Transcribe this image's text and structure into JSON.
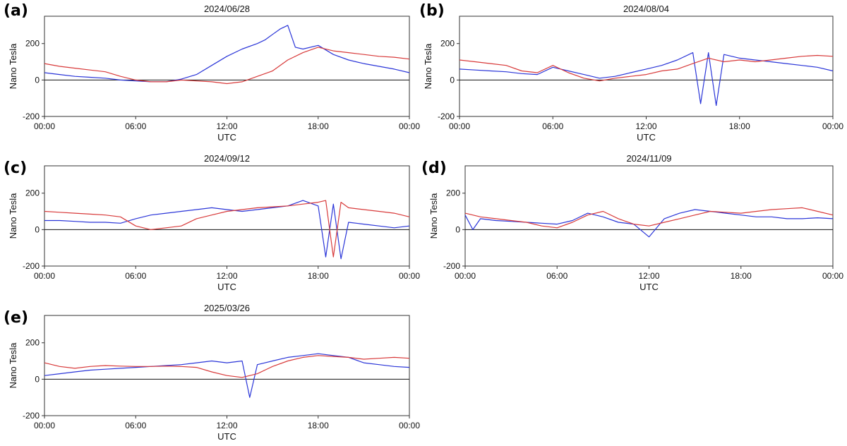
{
  "chart_data": [
    {
      "type": "line",
      "panel_label": "(a)",
      "title": "2024/06/28",
      "xlabel": "UTC",
      "ylabel": "Nano Tesla",
      "x_ticks": [
        "00:00",
        "06:00",
        "12:00",
        "18:00",
        "00:00"
      ],
      "y_ticks": [
        200,
        0,
        -200
      ],
      "xlim": [
        0,
        24
      ],
      "ylim": [
        -200,
        350
      ],
      "zero_line": true,
      "series": [
        {
          "color": "#2a35d8",
          "x": [
            0,
            1,
            2,
            3,
            4,
            5,
            6,
            7,
            8,
            9,
            10,
            11,
            12,
            13,
            14,
            14.5,
            15,
            15.5,
            16,
            16.5,
            17,
            18,
            19,
            20,
            21,
            22,
            23,
            24
          ],
          "y": [
            40,
            30,
            20,
            15,
            10,
            0,
            -5,
            -10,
            -10,
            5,
            30,
            80,
            130,
            170,
            200,
            220,
            250,
            280,
            300,
            180,
            170,
            190,
            140,
            110,
            90,
            75,
            60,
            40
          ]
        },
        {
          "color": "#d83a3a",
          "x": [
            0,
            1,
            2,
            3,
            4,
            5,
            6,
            7,
            8,
            9,
            10,
            11,
            12,
            13,
            14,
            15,
            16,
            17,
            18,
            19,
            20,
            21,
            22,
            23,
            24
          ],
          "y": [
            90,
            75,
            65,
            55,
            45,
            20,
            0,
            -10,
            -10,
            0,
            -5,
            -10,
            -20,
            -10,
            20,
            50,
            110,
            150,
            180,
            160,
            150,
            140,
            130,
            125,
            115
          ]
        }
      ]
    },
    {
      "type": "line",
      "panel_label": "(b)",
      "title": "2024/08/04",
      "xlabel": "UTC",
      "ylabel": "Nano Tesla",
      "x_ticks": [
        "00:00",
        "06:00",
        "12:00",
        "18:00",
        "00:00"
      ],
      "y_ticks": [
        200,
        0,
        -200
      ],
      "xlim": [
        0,
        24
      ],
      "ylim": [
        -200,
        350
      ],
      "zero_line": true,
      "series": [
        {
          "color": "#2a35d8",
          "x": [
            0,
            1,
            2,
            3,
            4,
            5,
            6,
            7,
            8,
            9,
            10,
            11,
            12,
            13,
            14,
            15,
            15.5,
            16,
            16.5,
            17,
            18,
            19,
            20,
            21,
            22,
            23,
            24
          ],
          "y": [
            60,
            55,
            50,
            45,
            35,
            30,
            70,
            50,
            30,
            10,
            20,
            40,
            60,
            80,
            110,
            150,
            -130,
            150,
            -140,
            140,
            120,
            110,
            100,
            90,
            80,
            70,
            50
          ]
        },
        {
          "color": "#d83a3a",
          "x": [
            0,
            1,
            2,
            3,
            4,
            5,
            6,
            7,
            8,
            9,
            10,
            11,
            12,
            13,
            14,
            15,
            16,
            17,
            18,
            19,
            20,
            21,
            22,
            23,
            24
          ],
          "y": [
            110,
            100,
            90,
            80,
            50,
            40,
            80,
            40,
            10,
            -5,
            10,
            20,
            30,
            50,
            60,
            90,
            120,
            100,
            110,
            100,
            110,
            120,
            130,
            135,
            130
          ]
        }
      ]
    },
    {
      "type": "line",
      "panel_label": "(c)",
      "title": "2024/09/12",
      "xlabel": "UTC",
      "ylabel": "Nano Tesla",
      "x_ticks": [
        "00:00",
        "06:00",
        "12:00",
        "18:00",
        "00:00"
      ],
      "y_ticks": [
        200,
        0,
        -200
      ],
      "xlim": [
        0,
        24
      ],
      "ylim": [
        -200,
        350
      ],
      "zero_line": true,
      "series": [
        {
          "color": "#2a35d8",
          "x": [
            0,
            1,
            2,
            3,
            4,
            5,
            6,
            7,
            8,
            9,
            10,
            11,
            12,
            13,
            14,
            15,
            16,
            17,
            18,
            18.5,
            19,
            19.5,
            20,
            21,
            22,
            23,
            24
          ],
          "y": [
            50,
            50,
            45,
            40,
            40,
            35,
            60,
            80,
            90,
            100,
            110,
            120,
            110,
            100,
            110,
            120,
            130,
            160,
            130,
            -150,
            140,
            -160,
            40,
            30,
            20,
            10,
            20
          ]
        },
        {
          "color": "#d83a3a",
          "x": [
            0,
            1,
            2,
            3,
            4,
            5,
            6,
            7,
            8,
            9,
            10,
            11,
            12,
            13,
            14,
            15,
            16,
            17,
            18,
            18.5,
            19,
            19.5,
            20,
            21,
            22,
            23,
            24
          ],
          "y": [
            100,
            95,
            90,
            85,
            80,
            70,
            20,
            0,
            10,
            20,
            60,
            80,
            100,
            110,
            120,
            125,
            130,
            140,
            150,
            160,
            -150,
            150,
            120,
            110,
            100,
            90,
            70
          ]
        }
      ]
    },
    {
      "type": "line",
      "panel_label": "(d)",
      "title": "2024/11/09",
      "xlabel": "UTC",
      "ylabel": "Nano Tesla",
      "x_ticks": [
        "00:00",
        "06:00",
        "12:00",
        "18:00",
        "00:00"
      ],
      "y_ticks": [
        200,
        0,
        -200
      ],
      "xlim": [
        0,
        24
      ],
      "ylim": [
        -200,
        350
      ],
      "zero_line": true,
      "series": [
        {
          "color": "#2a35d8",
          "x": [
            0,
            0.5,
            1,
            2,
            3,
            4,
            5,
            6,
            7,
            8,
            9,
            10,
            11,
            12,
            13,
            14,
            15,
            16,
            17,
            18,
            19,
            20,
            21,
            22,
            23,
            24
          ],
          "y": [
            80,
            0,
            60,
            50,
            45,
            40,
            35,
            30,
            50,
            90,
            70,
            40,
            30,
            -40,
            60,
            90,
            110,
            100,
            90,
            80,
            70,
            70,
            60,
            60,
            65,
            60
          ]
        },
        {
          "color": "#d83a3a",
          "x": [
            0,
            1,
            2,
            3,
            4,
            5,
            6,
            7,
            8,
            9,
            10,
            11,
            12,
            13,
            14,
            15,
            16,
            17,
            18,
            19,
            20,
            21,
            22,
            23,
            24
          ],
          "y": [
            90,
            70,
            60,
            50,
            40,
            20,
            10,
            40,
            80,
            100,
            60,
            30,
            20,
            40,
            60,
            80,
            100,
            95,
            90,
            100,
            110,
            115,
            120,
            100,
            80
          ]
        }
      ]
    },
    {
      "type": "line",
      "panel_label": "(e)",
      "title": "2025/03/26",
      "xlabel": "UTC",
      "ylabel": "Nano Tesla",
      "x_ticks": [
        "00:00",
        "06:00",
        "12:00",
        "18:00",
        "00:00"
      ],
      "y_ticks": [
        200,
        0,
        -200
      ],
      "xlim": [
        0,
        24
      ],
      "ylim": [
        -200,
        350
      ],
      "zero_line": true,
      "series": [
        {
          "color": "#2a35d8",
          "x": [
            0,
            1,
            2,
            3,
            4,
            5,
            6,
            7,
            8,
            9,
            10,
            11,
            12,
            13,
            13.5,
            14,
            15,
            16,
            17,
            18,
            19,
            20,
            21,
            22,
            23,
            24
          ],
          "y": [
            20,
            30,
            40,
            50,
            55,
            60,
            65,
            70,
            75,
            80,
            90,
            100,
            90,
            100,
            -100,
            80,
            100,
            120,
            130,
            140,
            130,
            120,
            90,
            80,
            70,
            65
          ]
        },
        {
          "color": "#d83a3a",
          "x": [
            0,
            1,
            2,
            3,
            4,
            5,
            6,
            7,
            8,
            9,
            10,
            11,
            12,
            13,
            14,
            15,
            16,
            17,
            18,
            19,
            20,
            21,
            22,
            23,
            24
          ],
          "y": [
            90,
            70,
            60,
            70,
            75,
            72,
            70,
            70,
            72,
            70,
            65,
            40,
            20,
            10,
            30,
            70,
            100,
            120,
            130,
            125,
            120,
            110,
            115,
            120,
            115
          ]
        }
      ]
    }
  ]
}
